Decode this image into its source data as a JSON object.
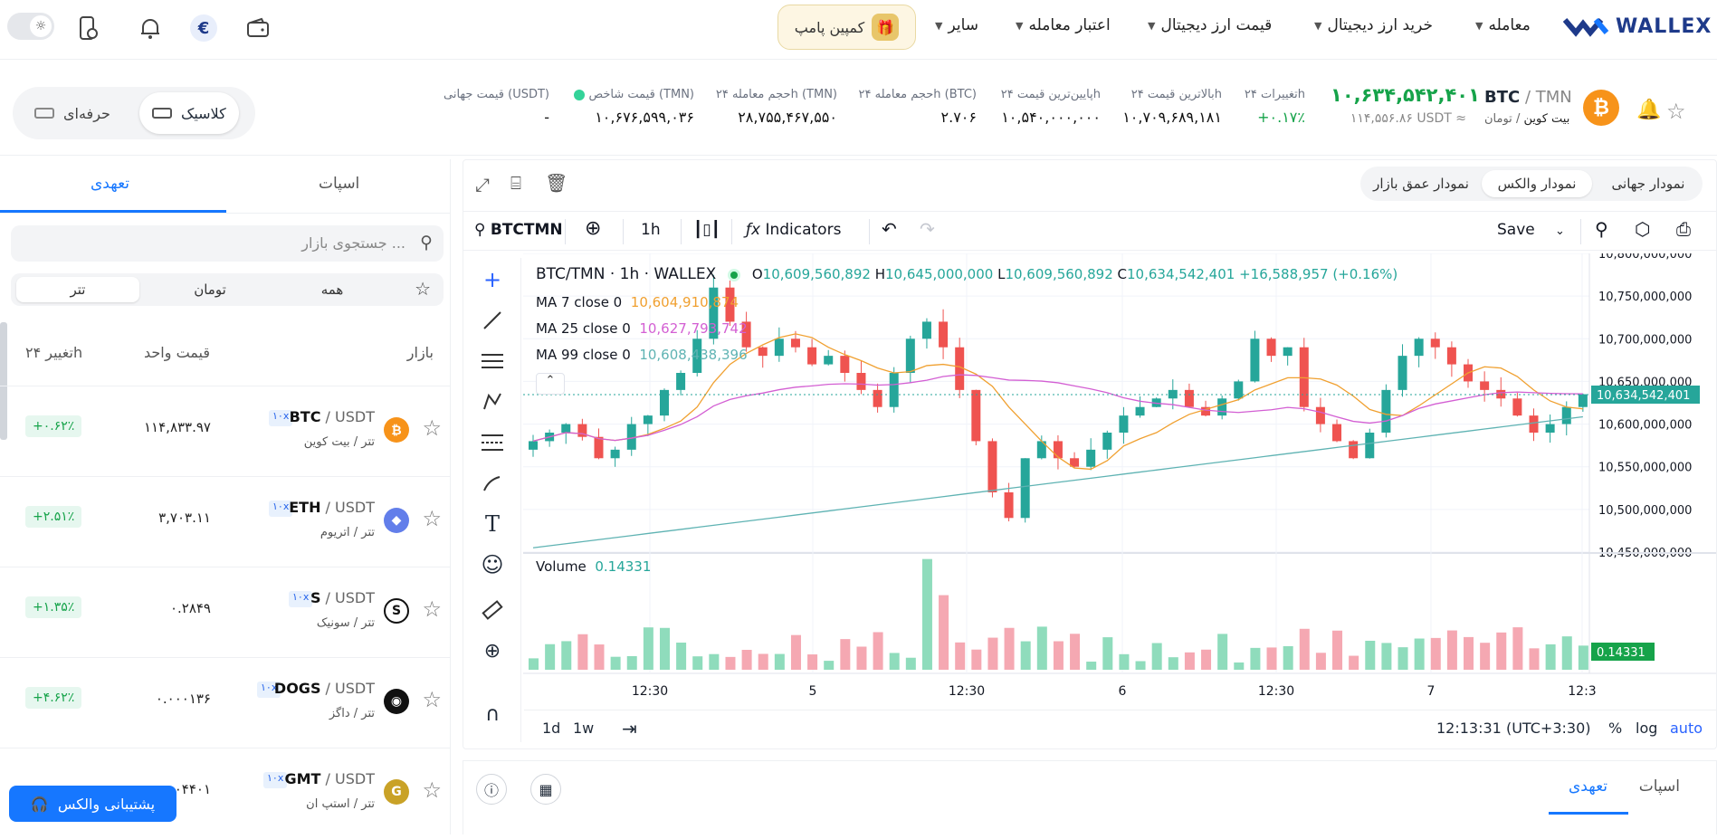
{
  "nav": {
    "logo": "WALLEX",
    "items": [
      "معامله",
      "خرید ارز دیجیتال",
      "قیمت ارز دیجیتال",
      "اعتبار معامله",
      "سایر"
    ],
    "campaign": "کمپین پامپ"
  },
  "ticker": {
    "pair_base": "BTC",
    "pair_quote": "TMN",
    "name_fa": "بیت کوین",
    "quote_fa": "تومان",
    "last_price": "۱۰,۶۳۴,۵۴۲,۴۰۱",
    "usdt_price": "۱۱۴,۵۵۶.۸۶ USDT ≈",
    "stats": [
      {
        "label": "تغییرات ۲۴h",
        "value": "+۰.۱۷٪"
      },
      {
        "label": "بالاترین قیمت ۲۴h",
        "value": "۱۰,۷۰۹,۶۸۹,۱۸۱"
      },
      {
        "label": "پایین‌ترین قیمت ۲۴h",
        "value": "۱۰,۵۴۰,۰۰۰,۰۰۰"
      },
      {
        "label": "حجم معامله ۲۴h (BTC)",
        "value": "۲.۷۰۶"
      },
      {
        "label": "حجم معامله ۲۴h (TMN)",
        "value": "۲۸,۷۵۵,۴۶۷,۵۵۰"
      },
      {
        "label": "قیمت شاخص (TMN)",
        "value": "۱۰,۶۷۶,۵۹۹,۰۳۶"
      },
      {
        "label": "قیمت جهانی (USDT)",
        "value": "-"
      }
    ],
    "mode_classic": "کلاسیک",
    "mode_pro": "حرفه‌ای"
  },
  "market": {
    "tabs": [
      "اسپات",
      "تعهدی"
    ],
    "search_placeholder": "جستجوی بازار ...",
    "filters": [
      "همه",
      "تومان",
      "تتر"
    ],
    "headers": {
      "market": "بازار",
      "price": "قیمت واحد",
      "change": "تغییر ۲۴h"
    },
    "rows": [
      {
        "base": "BTC",
        "quote": "USDT",
        "lev": "۱۰x",
        "sub": "تتر / بیت کوین",
        "price": "۱۱۴,۸۳۳.۹۷",
        "change": "+۰.۶۲٪",
        "coin_color": "#f7931a",
        "coin_glyph": "₿"
      },
      {
        "base": "ETH",
        "quote": "USDT",
        "lev": "۱۰x",
        "sub": "تتر / اتریوم",
        "price": "۳,۷۰۳.۱۱",
        "change": "+۲.۵۱٪",
        "coin_color": "#627eea",
        "coin_glyph": "◆"
      },
      {
        "base": "S",
        "quote": "USDT",
        "lev": "۱۰x",
        "sub": "تتر / سونیک",
        "price": "۰.۲۸۴۹",
        "change": "+۱.۳۵٪",
        "coin_color": "#111111",
        "coin_glyph": "S"
      },
      {
        "base": "DOGS",
        "quote": "USDT",
        "lev": "۱۰x",
        "sub": "تتر / داگز",
        "price": "۰.۰۰۰۱۳۶",
        "change": "+۴.۶۲٪",
        "coin_color": "#111111",
        "coin_glyph": "◉"
      },
      {
        "base": "GMT",
        "quote": "USDT",
        "lev": "۱۰x",
        "sub": "تتر / استپ ان",
        "price": "۰.۰۴۴۰۱",
        "change": "",
        "coin_color": "#c9a227",
        "coin_glyph": "G"
      }
    ],
    "support": "پشتیبانی والکس"
  },
  "chart_tabs": [
    "نمودار جهانی",
    "نمودار والکس",
    "نمودار عمق بازار"
  ],
  "tv": {
    "symbol": "BTCTMN",
    "interval": "1h",
    "indicators": "Indicators",
    "save": "Save",
    "title": "BTC/TMN · 1h · WALLEX",
    "ohlc": {
      "o": "10,609,560,892",
      "h": "10,645,000,000",
      "l": "10,609,560,892",
      "c": "10,634,542,401",
      "chg": "+16,588,957 (+0.16%)"
    },
    "ma7": {
      "label": "MA 7 close 0",
      "value": "10,604,910,874"
    },
    "ma25": {
      "label": "MA 25 close 0",
      "value": "10,627,793,742"
    },
    "ma99": {
      "label": "MA 99 close 0",
      "value": "10,608,438,396"
    },
    "price_tag": "10,634,542,401",
    "volume_label": "Volume",
    "volume_value": "0.14331",
    "yticks": [
      "10,800,000,000",
      "10,750,000,000",
      "10,700,000,000",
      "10,650,000,000",
      "10,600,000,000",
      "10,550,000,000",
      "10,500,000,000",
      "10,450,000,000"
    ],
    "xticks": [
      "12:30",
      "5",
      "12:30",
      "6",
      "12:30",
      "7",
      "12:3"
    ],
    "ranges": [
      "1d",
      "1w"
    ],
    "clock": "12:13:31 (UTC+3:30)",
    "scale_opts": [
      "%",
      "log",
      "auto"
    ]
  },
  "bottom_tabs": [
    "اسپات",
    "تعهدی"
  ],
  "colors": {
    "up": "#26a69a",
    "down": "#ef5350",
    "brand": "#1677ff",
    "ma7": "#f0a030",
    "ma25": "#d35fd3",
    "ma99": "#5fb3b3"
  },
  "chart_data": {
    "type": "candlestick",
    "ylim": [
      10450000000,
      10800000000
    ],
    "candles_up_down": "mixed",
    "last_close": 10634542401
  }
}
